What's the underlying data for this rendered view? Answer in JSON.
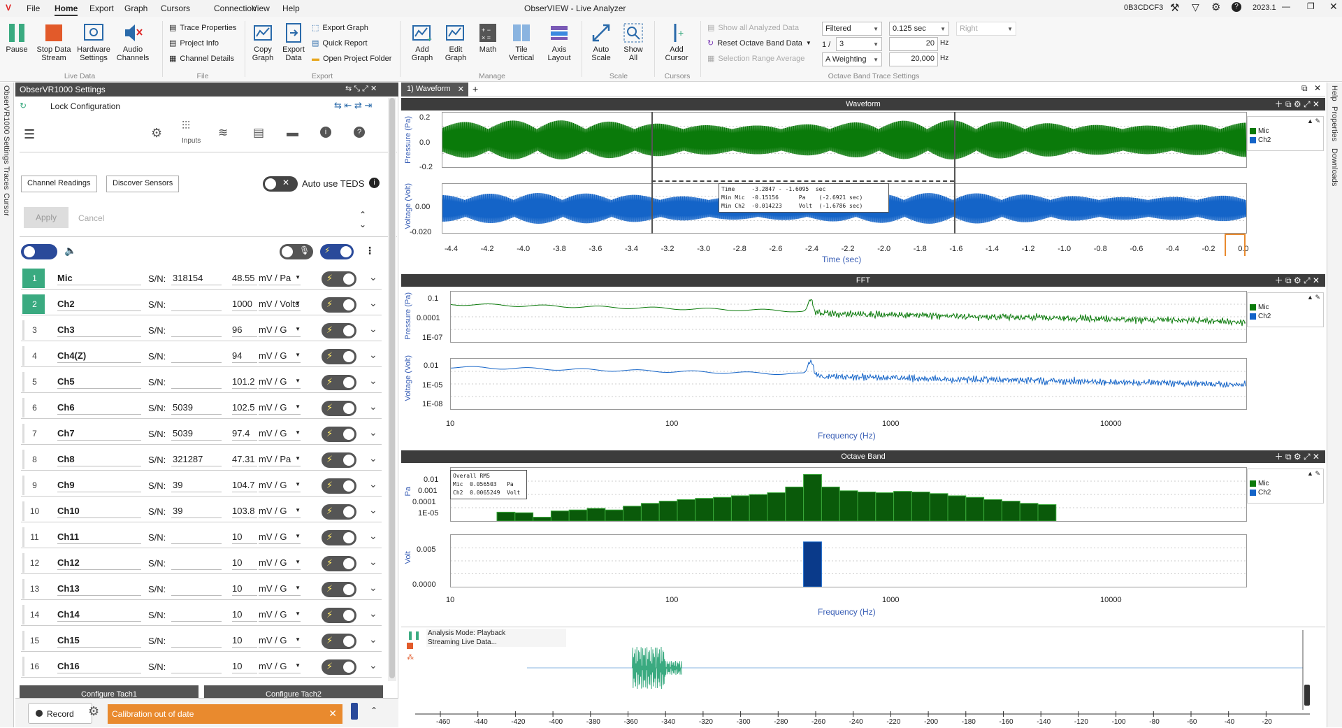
{
  "app": {
    "title": "ObserVIEW - Live Analyzer",
    "device": "0B3CDCF3",
    "version": "2023.1"
  },
  "menu": [
    "File",
    "Home",
    "Export",
    "Graph",
    "Cursors",
    "Connection",
    "View",
    "Help"
  ],
  "ribbon": {
    "pause": "Pause",
    "stop": "Stop Data Stream",
    "hw": "Hardware Settings",
    "audio": "Audio Channels",
    "trace_props": "Trace Properties",
    "project_info": "Project Info",
    "channel_details": "Channel Details",
    "copy": "Copy Graph",
    "export": "Export Data",
    "export_graph": "Export Graph",
    "quick_report": "Quick Report",
    "open_folder": "Open Project Folder",
    "add_graph": "Add Graph",
    "edit_graph": "Edit Graph",
    "math": "Math",
    "tile": "Tile Vertical",
    "axis": "Axis Layout",
    "autoscale": "Auto Scale",
    "showall": "Show All",
    "addcursor": "Add Cursor",
    "show_analyzed": "Show all Analyzed Data",
    "reset_octave": "Reset Octave Band Data",
    "sel_range": "Selection Range Average",
    "filtered": "Filtered",
    "frac_prefix": "1 /",
    "frac": "3",
    "weighting": "A Weighting",
    "interval": "0.125  sec",
    "hz1": "20",
    "hz2": "20,000",
    "hz_unit": "Hz",
    "right": "Right",
    "groups": {
      "live": "Live Data",
      "file": "File",
      "export": "Export",
      "manage": "Manage",
      "scale": "Scale",
      "cursors": "Cursors",
      "octave": "Octave Band Trace Settings"
    }
  },
  "side_tabs": [
    "ObserVR1000 Settings",
    "Traces",
    "Cursor"
  ],
  "right_tabs": [
    "Help",
    "Properties",
    "Downloads"
  ],
  "settings": {
    "title": "ObserVR1000 Settings",
    "lock": "Lock Configuration",
    "inputs": "Inputs",
    "channel_readings": "Channel Readings",
    "discover": "Discover Sensors",
    "auto_teds": "Auto use TEDS",
    "apply": "Apply",
    "cancel": "Cancel",
    "sn_label": "S/N:",
    "channels": [
      {
        "num": "1",
        "name": "Mic",
        "sn": "318154",
        "sens": "48.55",
        "unit": "mV / Pa",
        "active": true
      },
      {
        "num": "2",
        "name": "Ch2",
        "sn": "",
        "sens": "1000",
        "unit": "mV / Volts",
        "active": true
      },
      {
        "num": "3",
        "name": "Ch3",
        "sn": "",
        "sens": "96",
        "unit": "mV / G",
        "active": false
      },
      {
        "num": "4",
        "name": "Ch4(Z)",
        "sn": "",
        "sens": "94",
        "unit": "mV / G",
        "active": false
      },
      {
        "num": "5",
        "name": "Ch5",
        "sn": "",
        "sens": "101.2",
        "unit": "mV / G",
        "active": false
      },
      {
        "num": "6",
        "name": "Ch6",
        "sn": "5039",
        "sens": "102.5",
        "unit": "mV / G",
        "active": false
      },
      {
        "num": "7",
        "name": "Ch7",
        "sn": "5039",
        "sens": "97.4",
        "unit": "mV / G",
        "active": false
      },
      {
        "num": "8",
        "name": "Ch8",
        "sn": "321287",
        "sens": "47.31",
        "unit": "mV / Pa",
        "active": false
      },
      {
        "num": "9",
        "name": "Ch9",
        "sn": "39",
        "sens": "104.7",
        "unit": "mV / G",
        "active": false
      },
      {
        "num": "10",
        "name": "Ch10",
        "sn": "39",
        "sens": "103.8",
        "unit": "mV / G",
        "active": false
      },
      {
        "num": "11",
        "name": "Ch11",
        "sn": "",
        "sens": "10",
        "unit": "mV / G",
        "active": false
      },
      {
        "num": "12",
        "name": "Ch12",
        "sn": "",
        "sens": "10",
        "unit": "mV / G",
        "active": false
      },
      {
        "num": "13",
        "name": "Ch13",
        "sn": "",
        "sens": "10",
        "unit": "mV / G",
        "active": false
      },
      {
        "num": "14",
        "name": "Ch14",
        "sn": "",
        "sens": "10",
        "unit": "mV / G",
        "active": false
      },
      {
        "num": "15",
        "name": "Ch15",
        "sn": "",
        "sens": "10",
        "unit": "mV / G",
        "active": false
      },
      {
        "num": "16",
        "name": "Ch16",
        "sn": "",
        "sens": "10",
        "unit": "mV / G",
        "active": false
      }
    ],
    "tach1": "Configure Tach1",
    "tach2": "Configure Tach2",
    "record": "Record",
    "calib_msg": "Calibration out of date"
  },
  "tabs": {
    "waveform_tab": "1) Waveform"
  },
  "waveform": {
    "title": "Waveform",
    "y1": "Pressure (Pa)",
    "y2": "Voltage (Volt)",
    "xlabel": "Time (sec)",
    "y1_ticks": [
      "0.2",
      "0.0",
      "-0.2"
    ],
    "y2_ticks": [
      "0.00",
      "-0.020"
    ],
    "x_ticks": [
      "-4.4",
      "-4.2",
      "-4.0",
      "-3.8",
      "-3.6",
      "-3.4",
      "-3.2",
      "-3.0",
      "-2.8",
      "-2.6",
      "-2.4",
      "-2.2",
      "-2.0",
      "-1.8",
      "-1.6",
      "-1.4",
      "-1.2",
      "-1.0",
      "-0.8",
      "-0.6",
      "-0.4",
      "-0.2",
      "0.0"
    ],
    "cursor_readout": [
      "Time     -3.2847 - -1.6095  sec",
      "Min Mic  -0.15156      Pa    (-2.6921 sec)",
      "Min Ch2  -0.014223     Volt  (-1.6786 sec)"
    ]
  },
  "fft": {
    "title": "FFT",
    "y1": "Pressure (Pa)",
    "y2": "Voltage (Volt)",
    "xlabel": "Frequency (Hz)",
    "y1_ticks": [
      "0.1",
      "0.0001",
      "1E-07"
    ],
    "y2_ticks": [
      "0.01",
      "1E-05",
      "1E-08"
    ],
    "x_ticks": [
      "10",
      "100",
      "1000",
      "10000"
    ]
  },
  "octave": {
    "title": "Octave Band",
    "y1": "Pa",
    "y2": "Volt",
    "xlabel": "Frequency (Hz)",
    "y1_ticks": [
      "0.01",
      "0.001",
      "0.0001",
      "1E-05"
    ],
    "y2_ticks": [
      "0.005",
      "0.0000"
    ],
    "x_ticks": [
      "10",
      "100",
      "1000",
      "10000"
    ],
    "rms_box": [
      "Overall RMS",
      "Mic  0.056503   Pa",
      "Ch2  0.0065249  Volt"
    ]
  },
  "legend": [
    {
      "name": "Mic",
      "color": "#0a7a0a"
    },
    {
      "name": "Ch2",
      "color": "#1464c8"
    }
  ],
  "overview": {
    "mode": "Analysis Mode: Playback",
    "streaming": "Streaming Live Data...",
    "x_ticks": [
      "-460",
      "-440",
      "-420",
      "-400",
      "-380",
      "-360",
      "-340",
      "-320",
      "-300",
      "-280",
      "-260",
      "-240",
      "-220",
      "-200",
      "-180",
      "-160",
      "-140",
      "-120",
      "-100",
      "-80",
      "-60",
      "-40",
      "-20"
    ]
  },
  "chart_data": [
    {
      "type": "bar",
      "title": "Octave Band",
      "xlabel": "Frequency (Hz)",
      "ylabel": "Pa",
      "series": [
        {
          "name": "Mic",
          "values": [
            2e-05,
            1.8e-05,
            8e-06,
            2.5e-05,
            3e-05,
            4e-05,
            3e-05,
            6e-05,
            0.0001,
            0.00015,
            0.0002,
            0.00025,
            0.0003,
            0.0004,
            0.0005,
            0.0007,
            0.002,
            0.02,
            0.002,
            0.001,
            0.0008,
            0.0007,
            0.0009,
            0.0008,
            0.0006,
            0.0004,
            0.0003,
            0.0002,
            0.00015,
            0.0001,
            8e-05
          ]
        }
      ]
    },
    {
      "type": "bar",
      "title": "Octave Band",
      "xlabel": "Frequency (Hz)",
      "ylabel": "Volt",
      "series": [
        {
          "name": "Ch2",
          "values": [
            0,
            0,
            0,
            0,
            0,
            0,
            0,
            0,
            0,
            0,
            0,
            0,
            0,
            0,
            0,
            0,
            0,
            0.0065,
            0,
            0,
            0,
            0,
            0,
            0,
            0,
            0,
            0,
            0,
            0,
            0,
            0
          ]
        }
      ]
    }
  ]
}
